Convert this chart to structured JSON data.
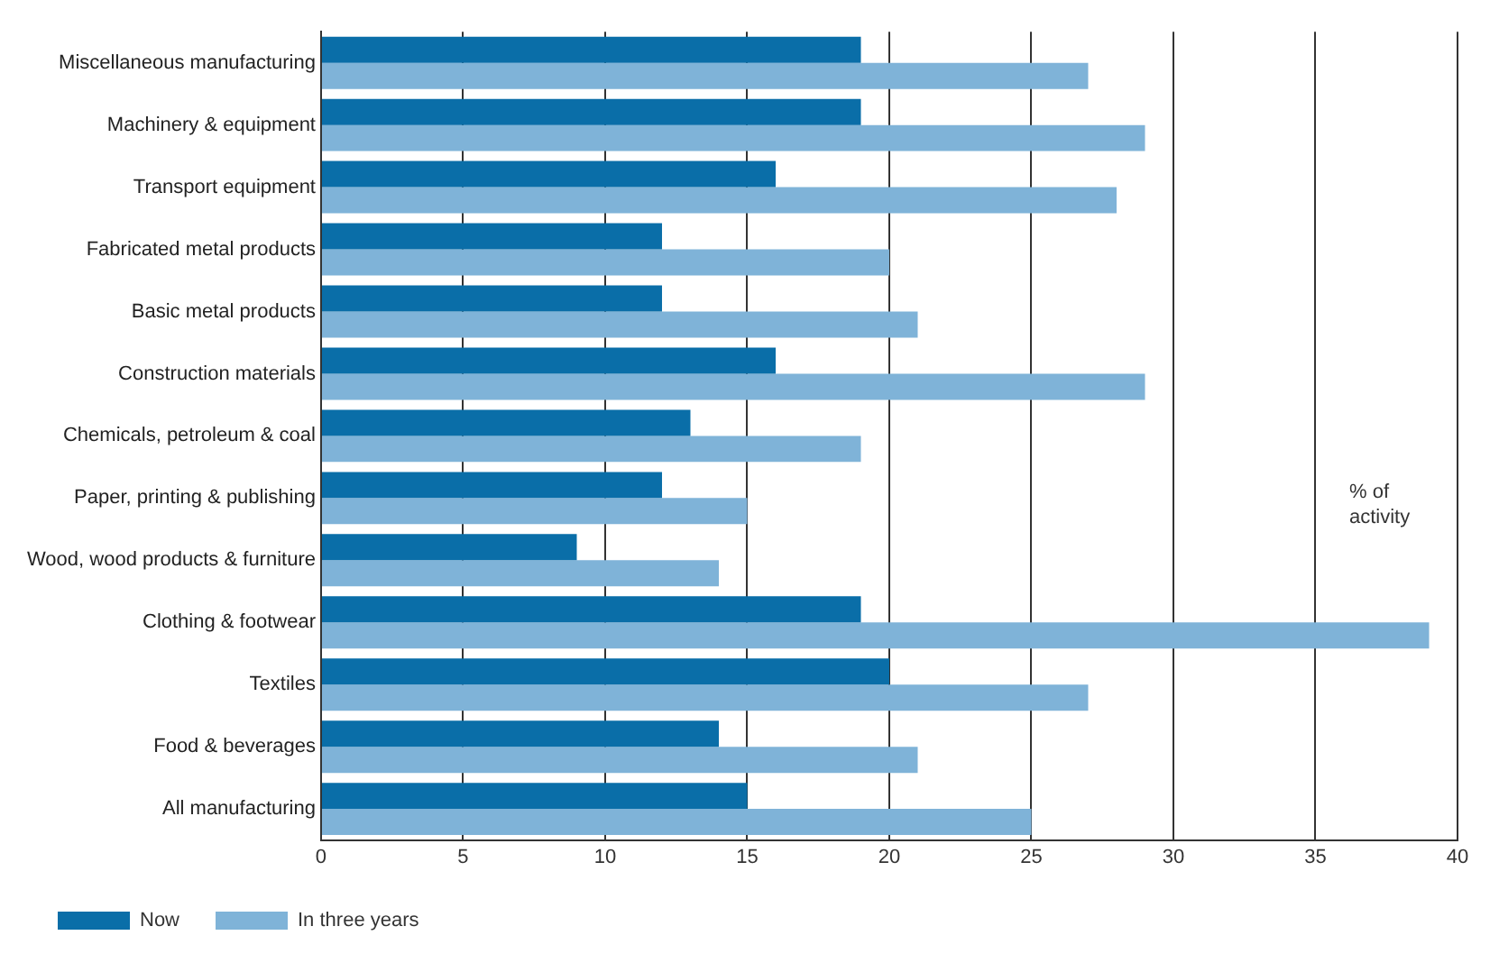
{
  "chart_data": {
    "type": "bar",
    "orientation": "horizontal",
    "categories": [
      "Miscellaneous manufacturing",
      "Machinery & equipment",
      "Transport equipment",
      "Fabricated metal products",
      "Basic metal products",
      "Construction materials",
      "Chemicals, petroleum & coal",
      "Paper, printing & publishing",
      "Wood, wood products & furniture",
      "Clothing & footwear",
      "Textiles",
      "Food & beverages",
      "All manufacturing"
    ],
    "series": [
      {
        "name": "Now",
        "color": "#0a6ea8",
        "values": [
          19,
          19,
          16,
          12,
          12,
          16,
          13,
          12,
          9,
          19,
          20,
          14,
          15
        ]
      },
      {
        "name": "In three years",
        "color": "#7fb3d8",
        "values": [
          27,
          29,
          28,
          20,
          21,
          29,
          19,
          15,
          14,
          39,
          27,
          21,
          25
        ]
      }
    ],
    "xlim": [
      0,
      40
    ],
    "xticks": [
      0,
      5,
      10,
      15,
      20,
      25,
      30,
      35,
      40
    ],
    "grid": "x",
    "legend": "bottom left",
    "annotations": [
      "% of activity"
    ]
  }
}
